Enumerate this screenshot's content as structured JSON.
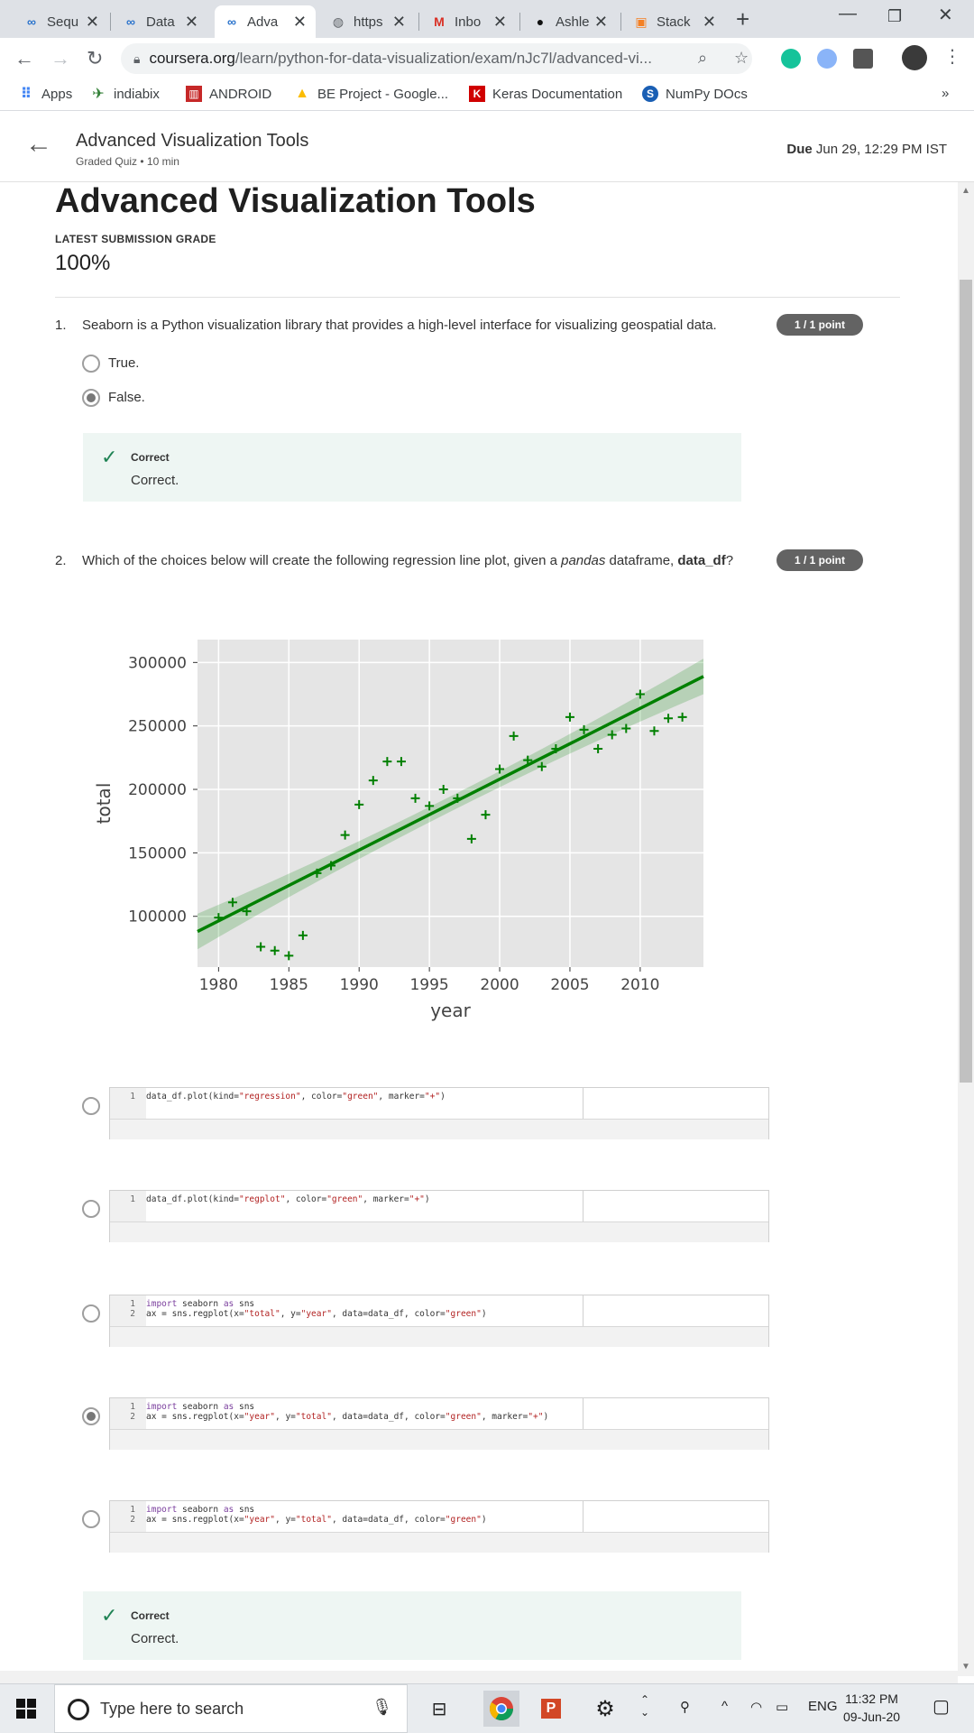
{
  "tabs": [
    {
      "title": "Sequ",
      "icon": "coursera-icon"
    },
    {
      "title": "Data",
      "icon": "coursera-icon"
    },
    {
      "title": "Adva",
      "icon": "coursera-icon",
      "active": true
    },
    {
      "title": "https",
      "icon": "globe-icon"
    },
    {
      "title": "Inbo",
      "icon": "gmail-icon"
    },
    {
      "title": "Ashle",
      "icon": "github-icon"
    },
    {
      "title": "Stack",
      "icon": "stackoverflow-icon"
    }
  ],
  "address": {
    "domain": "coursera.org",
    "path": "/learn/python-for-data-visualization/exam/nJc7l/advanced-vi..."
  },
  "bookmarks": [
    {
      "label": "Apps",
      "icon": "apps-grid-icon"
    },
    {
      "label": "indiabix",
      "icon": "indiabix-icon"
    },
    {
      "label": "ANDROID",
      "icon": "android-bookmark-icon"
    },
    {
      "label": "BE Project - Google...",
      "icon": "google-drive-icon"
    },
    {
      "label": "Keras Documentation",
      "icon": "keras-icon"
    },
    {
      "label": "NumPy DOcs",
      "icon": "numpy-icon"
    }
  ],
  "bookmarks_overflow": "»",
  "header": {
    "title": "Advanced Visualization Tools",
    "subtitle": "Graded Quiz • 10 min",
    "due_label": "Due",
    "due_value": "Jun 29, 12:29 PM IST"
  },
  "quiz": {
    "title": "Advanced Visualization Tools",
    "grade_label": "LATEST SUBMISSION GRADE",
    "grade_value": "100%"
  },
  "q1": {
    "number": "1.",
    "text": "Seaborn is a Python visualization library that provides a high-level interface for visualizing geospatial data.",
    "points": "1 / 1 point",
    "options": [
      {
        "label": "True.",
        "selected": false
      },
      {
        "label": "False.",
        "selected": true
      }
    ],
    "feedback_heading": "Correct",
    "feedback_text": "Correct."
  },
  "q2": {
    "number": "2.",
    "text_before": "Which of the choices below will create the following regression line plot, given a ",
    "text_italic": "pandas",
    "text_middle": " dataframe, ",
    "text_bold": "data_df",
    "text_after": "?",
    "points": "1 / 1 point",
    "options": [
      {
        "selected": false,
        "lines": [
          "data_df.plot(kind=\"regression\", color=\"green\", marker=\"+\")"
        ]
      },
      {
        "selected": false,
        "lines": [
          "data_df.plot(kind=\"regplot\", color=\"green\", marker=\"+\")"
        ]
      },
      {
        "selected": false,
        "lines": [
          "import seaborn as sns",
          "ax = sns.regplot(x=\"total\", y=\"year\", data=data_df, color=\"green\")"
        ]
      },
      {
        "selected": true,
        "lines": [
          "import seaborn as sns",
          "ax = sns.regplot(x=\"year\", y=\"total\", data=data_df, color=\"green\", marker=\"+\")"
        ]
      },
      {
        "selected": false,
        "lines": [
          "import seaborn as sns",
          "ax = sns.regplot(x=\"year\", y=\"total\", data=data_df, color=\"green\")"
        ]
      }
    ],
    "feedback_heading": "Correct",
    "feedback_text": "Correct."
  },
  "chart_data": {
    "type": "scatter",
    "title": "",
    "xlabel": "year",
    "ylabel": "total",
    "xlim": [
      1978.5,
      2014.5
    ],
    "ylim": [
      60000,
      318000
    ],
    "xticks": [
      1980,
      1985,
      1990,
      1995,
      2000,
      2005,
      2010
    ],
    "yticks": [
      100000,
      150000,
      200000,
      250000,
      300000
    ],
    "grid": true,
    "marker": "+",
    "color": "#008000",
    "x": [
      1980,
      1981,
      1982,
      1983,
      1984,
      1985,
      1986,
      1987,
      1988,
      1989,
      1990,
      1991,
      1992,
      1993,
      1994,
      1995,
      1996,
      1997,
      1998,
      1999,
      2000,
      2001,
      2002,
      2003,
      2004,
      2005,
      2006,
      2007,
      2008,
      2009,
      2010,
      2011,
      2012,
      2013
    ],
    "y": [
      99000,
      111000,
      104000,
      76000,
      73000,
      69000,
      85000,
      134000,
      140000,
      164000,
      188000,
      207000,
      222000,
      222000,
      193000,
      187000,
      200000,
      193000,
      161000,
      180000,
      216000,
      242000,
      223000,
      218000,
      232000,
      257000,
      247000,
      232000,
      243000,
      248000,
      275000,
      246000,
      256000,
      257000
    ],
    "regression": {
      "x": [
        1978.5,
        2014.5
      ],
      "y": [
        88000,
        289000
      ]
    },
    "ci_halfwidth_edge": 14000,
    "ci_halfwidth_center": 6000
  },
  "taskbar": {
    "search_placeholder": "Type here to search",
    "lang": "ENG",
    "time": "11:32 PM",
    "date": "09-Jun-20"
  }
}
